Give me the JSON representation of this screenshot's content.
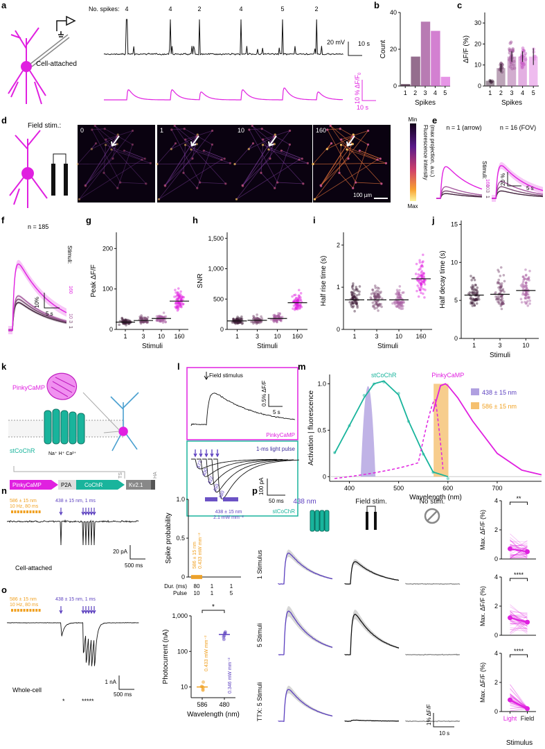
{
  "colors": {
    "magenta": "#e020e0",
    "cyan": "#19b49c",
    "violet": "#5b3fbf",
    "orange": "#f0a020",
    "black": "#111111",
    "grey": "#888888",
    "s1": "#40203a",
    "s2": "#7a4a72",
    "s3": "#a65aa0",
    "s4": "#c860c6",
    "s5": "#e07ae0"
  },
  "panels": {
    "a": "a",
    "b": "b",
    "c": "c",
    "d": "d",
    "e": "e",
    "f": "f",
    "g": "g",
    "h": "h",
    "i": "i",
    "j": "j",
    "k": "k",
    "l": "l",
    "m": "m",
    "n": "n",
    "o": "o",
    "p": "p"
  },
  "a": {
    "no_spikes_label": "No. spikes:",
    "spike_counts": [
      "4",
      "4",
      "2",
      "4",
      "5",
      "2"
    ],
    "cell_attached": "Cell-attached",
    "scale_mv": "20 mV",
    "scale_s1": "10 s",
    "scale_dff": "10 % ΔF/F",
    "scale_dff_sub": "0",
    "scale_s2": "10 s"
  },
  "d": {
    "field_stim": "Field stim.:",
    "frames": [
      "0",
      "1",
      "10",
      "160"
    ],
    "scalebar": "100 µm",
    "cbar_min": "Min",
    "cbar_max": "Max",
    "cbar_title1": "Fluorescence intensity",
    "cbar_title2": "(max projection, a.u.)"
  },
  "e": {
    "t1": "n = 1 (arrow)",
    "t2": "n = 16 (FOV)",
    "stimuli": "Stimuli:",
    "levels": [
      "160",
      "10",
      "3",
      "1"
    ],
    "scale_pct": "20 %",
    "scale_s": "5 s"
  },
  "f": {
    "title": "n = 185",
    "stimuli": "Stimuli:",
    "levels": [
      "160",
      "10",
      "3",
      "1"
    ],
    "scale_pct": "10%",
    "scale_s": "5 s"
  },
  "k": {
    "pinkycamp": "PinkyCaMP",
    "stcochr": "stCoChR",
    "ions": "Na⁺ H⁺ Ca²⁺",
    "construct": [
      "PinkyCaMP",
      "P2A",
      "CoChR",
      "Kv2.1"
    ],
    "ts": "TS",
    "ha": "HA"
  },
  "l": {
    "field_stimulus": "Field stimulus",
    "pinkycamp": "PinkyCaMP",
    "light_pulse": "1-ms light pulse",
    "stcochr": "stCoChR",
    "scale_pct": "0.5% ΔF/F",
    "scale_s": "5 s",
    "scale_pa": "100 pA",
    "scale_ms": "50 ms",
    "pulse_labels": [
      "372",
      "400",
      "422",
      "450",
      "480"
    ]
  },
  "m": {
    "stcochr": "stCoChR",
    "pinkycamp": "PinkyCaMP",
    "legend": [
      "438 ± 15 nm",
      "586 ± 15 nm"
    ]
  },
  "n": {
    "orange_label1": "586 ± 15 nm",
    "orange_label2": "10 Hz, 80 ms",
    "violet_label": "438 ± 15 nm, 1 ms",
    "mode": "Cell-attached",
    "scale_pa": "20 pA",
    "scale_ms": "500 ms",
    "ann_violet1": "438 ± 15 nm",
    "ann_violet2": "2.1 mW mm⁻²",
    "ann_orange1": "586 ± 15 nm",
    "ann_orange2": "0.433 mW mm⁻²",
    "dur_label": "Dur. (ms)",
    "pulse_label": "Pulse",
    "dur": [
      "80",
      "1",
      "1"
    ],
    "pulse": [
      "10",
      "1",
      "5"
    ]
  },
  "o": {
    "orange_label1": "586 ± 15 nm",
    "orange_label2": "10 Hz, 80 ms",
    "violet_label": "438 ± 15 nm, 1 ms",
    "mode": "Whole-cell",
    "scale_na": "1 nA",
    "scale_ms": "500 ms",
    "star1": "*",
    "star5": "*****",
    "sig": "*",
    "ann_orange": "0.433 mW mm⁻²",
    "ann_violet": "0.346 mW mm⁻²"
  },
  "p": {
    "cols": [
      "438 nm",
      "Field stim.",
      "No stim."
    ],
    "rows": [
      "1 Stimulus",
      "5 Stimuli",
      "TTX: 5 Stimuli"
    ],
    "sig": [
      "**",
      "****",
      "****"
    ],
    "ylabel": "Max. ΔF/F",
    "yunit": "(%)",
    "xcats": [
      "Light",
      "Field"
    ],
    "xlabel": "Stimulus",
    "scale_pct": "1% ΔF/F",
    "scale_s": "10 s"
  },
  "chart_data": [
    {
      "panel": "b",
      "type": "bar",
      "categories": [
        "1",
        "2",
        "3",
        "4",
        "5"
      ],
      "values": [
        1,
        16,
        35,
        30,
        5
      ],
      "xlabel": "Spikes",
      "ylabel": "Count",
      "ylim": [
        0,
        40
      ],
      "yticks": [
        "0",
        "20",
        "40"
      ]
    },
    {
      "panel": "c",
      "type": "bar",
      "categories": [
        "1",
        "2",
        "3",
        "4",
        "5"
      ],
      "values": [
        2.5,
        8.5,
        14,
        14,
        14
      ],
      "errors": [
        0.5,
        2,
        2.5,
        2.5,
        4
      ],
      "xlabel": "Spikes",
      "ylabel": "ΔF/F",
      "ylim": [
        0,
        35
      ],
      "yticks": [
        "0",
        "10",
        "20",
        "30"
      ]
    },
    {
      "panel": "g",
      "type": "scatter",
      "categories": [
        "1",
        "3",
        "10",
        "160"
      ],
      "medians": [
        18,
        22,
        27,
        70
      ],
      "spread": [
        60,
        75,
        90,
        240
      ],
      "xlabel": "Stimuli",
      "ylabel": "Peak ΔF/F",
      "ylim": [
        0,
        240
      ],
      "yticks": [
        "0",
        "100",
        "200"
      ]
    },
    {
      "panel": "h",
      "type": "scatter",
      "categories": [
        "1",
        "3",
        "10",
        "160"
      ],
      "medians": [
        140,
        150,
        180,
        440
      ],
      "spread": [
        480,
        520,
        650,
        1500
      ],
      "xlabel": "Stimuli",
      "ylabel": "SNR",
      "ylim": [
        0,
        1600
      ],
      "yticks": [
        "0",
        "500",
        "1,000",
        "1,500"
      ]
    },
    {
      "panel": "i",
      "type": "scatter",
      "categories": [
        "1",
        "3",
        "10",
        "160"
      ],
      "medians": [
        0.7,
        0.7,
        0.7,
        1.2
      ],
      "spread": [
        1.3,
        1.3,
        1.3,
        2.2
      ],
      "xlabel": "Stimuli",
      "ylabel": "Half rise time (s)",
      "ylim": [
        0,
        2.3
      ],
      "yticks": [
        "0",
        "1",
        "2"
      ]
    },
    {
      "panel": "j",
      "type": "scatter",
      "categories": [
        "1",
        "3",
        "10"
      ],
      "medians": [
        5.7,
        5.8,
        6.3
      ],
      "spread": [
        12.8,
        15.3,
        13.1
      ],
      "xlabel": "Stimuli",
      "ylabel": "Half decay time (s)",
      "ylim": [
        0,
        15.5
      ],
      "yticks": [
        "0",
        "5",
        "10",
        "15"
      ]
    },
    {
      "panel": "m",
      "type": "line",
      "xlabel": "Wavelength (nm)",
      "ylabel": "Activation | fluorescence",
      "xlim": [
        360,
        790
      ],
      "ylim": [
        -0.05,
        1.1
      ],
      "xticks": [
        "400",
        "500",
        "600",
        "700"
      ],
      "yticks": [
        "0",
        "0.5",
        "1.0"
      ],
      "series": [
        {
          "name": "stCoChR",
          "x": [
            370,
            400,
            430,
            450,
            470,
            500,
            520,
            550,
            570,
            600
          ],
          "y": [
            0.25,
            0.55,
            0.85,
            1.0,
            1.03,
            0.88,
            0.6,
            0.25,
            0.05,
            0.0
          ]
        },
        {
          "name": "PinkyCaMP",
          "x": [
            570,
            585,
            595,
            600,
            620,
            650,
            700,
            750,
            790
          ],
          "y": [
            0.7,
            0.98,
            1.0,
            0.98,
            0.85,
            0.6,
            0.25,
            0.07,
            0.02
          ]
        }
      ]
    },
    {
      "panel": "n",
      "type": "scatter",
      "ylabel": "Spike probability",
      "ylim": [
        0,
        1
      ],
      "yticks": [
        "0",
        "0.5",
        "1.0"
      ],
      "series": [
        {
          "name": "586 ± 15 nm",
          "values": [
            0
          ]
        },
        {
          "name": "438 ± 15 nm",
          "values": [
            1,
            1
          ]
        }
      ]
    },
    {
      "panel": "o",
      "type": "scatter",
      "categories": [
        "586",
        "480"
      ],
      "values": [
        10,
        300
      ],
      "xlabel": "Wavelength (nm)",
      "ylabel": "Photocurrent (nA)",
      "ylim": [
        5,
        1000
      ],
      "yticks": [
        "10",
        "100",
        "1,000"
      ],
      "log": true
    },
    {
      "panel": "p1",
      "type": "scatter",
      "categories": [
        "Light",
        "Field"
      ],
      "values": [
        0.7,
        0.5
      ],
      "ylim": [
        0,
        4
      ],
      "yticks": [
        "0",
        "2",
        "4"
      ]
    },
    {
      "panel": "p2",
      "type": "scatter",
      "categories": [
        "Light",
        "Field"
      ],
      "values": [
        1.2,
        0.9
      ],
      "ylim": [
        0,
        4
      ],
      "yticks": [
        "0",
        "2",
        "4"
      ]
    },
    {
      "panel": "p3",
      "type": "scatter",
      "categories": [
        "Light",
        "Field"
      ],
      "values": [
        0.8,
        0.2
      ],
      "ylim": [
        0,
        4
      ],
      "yticks": [
        "0",
        "2",
        "4"
      ]
    }
  ]
}
